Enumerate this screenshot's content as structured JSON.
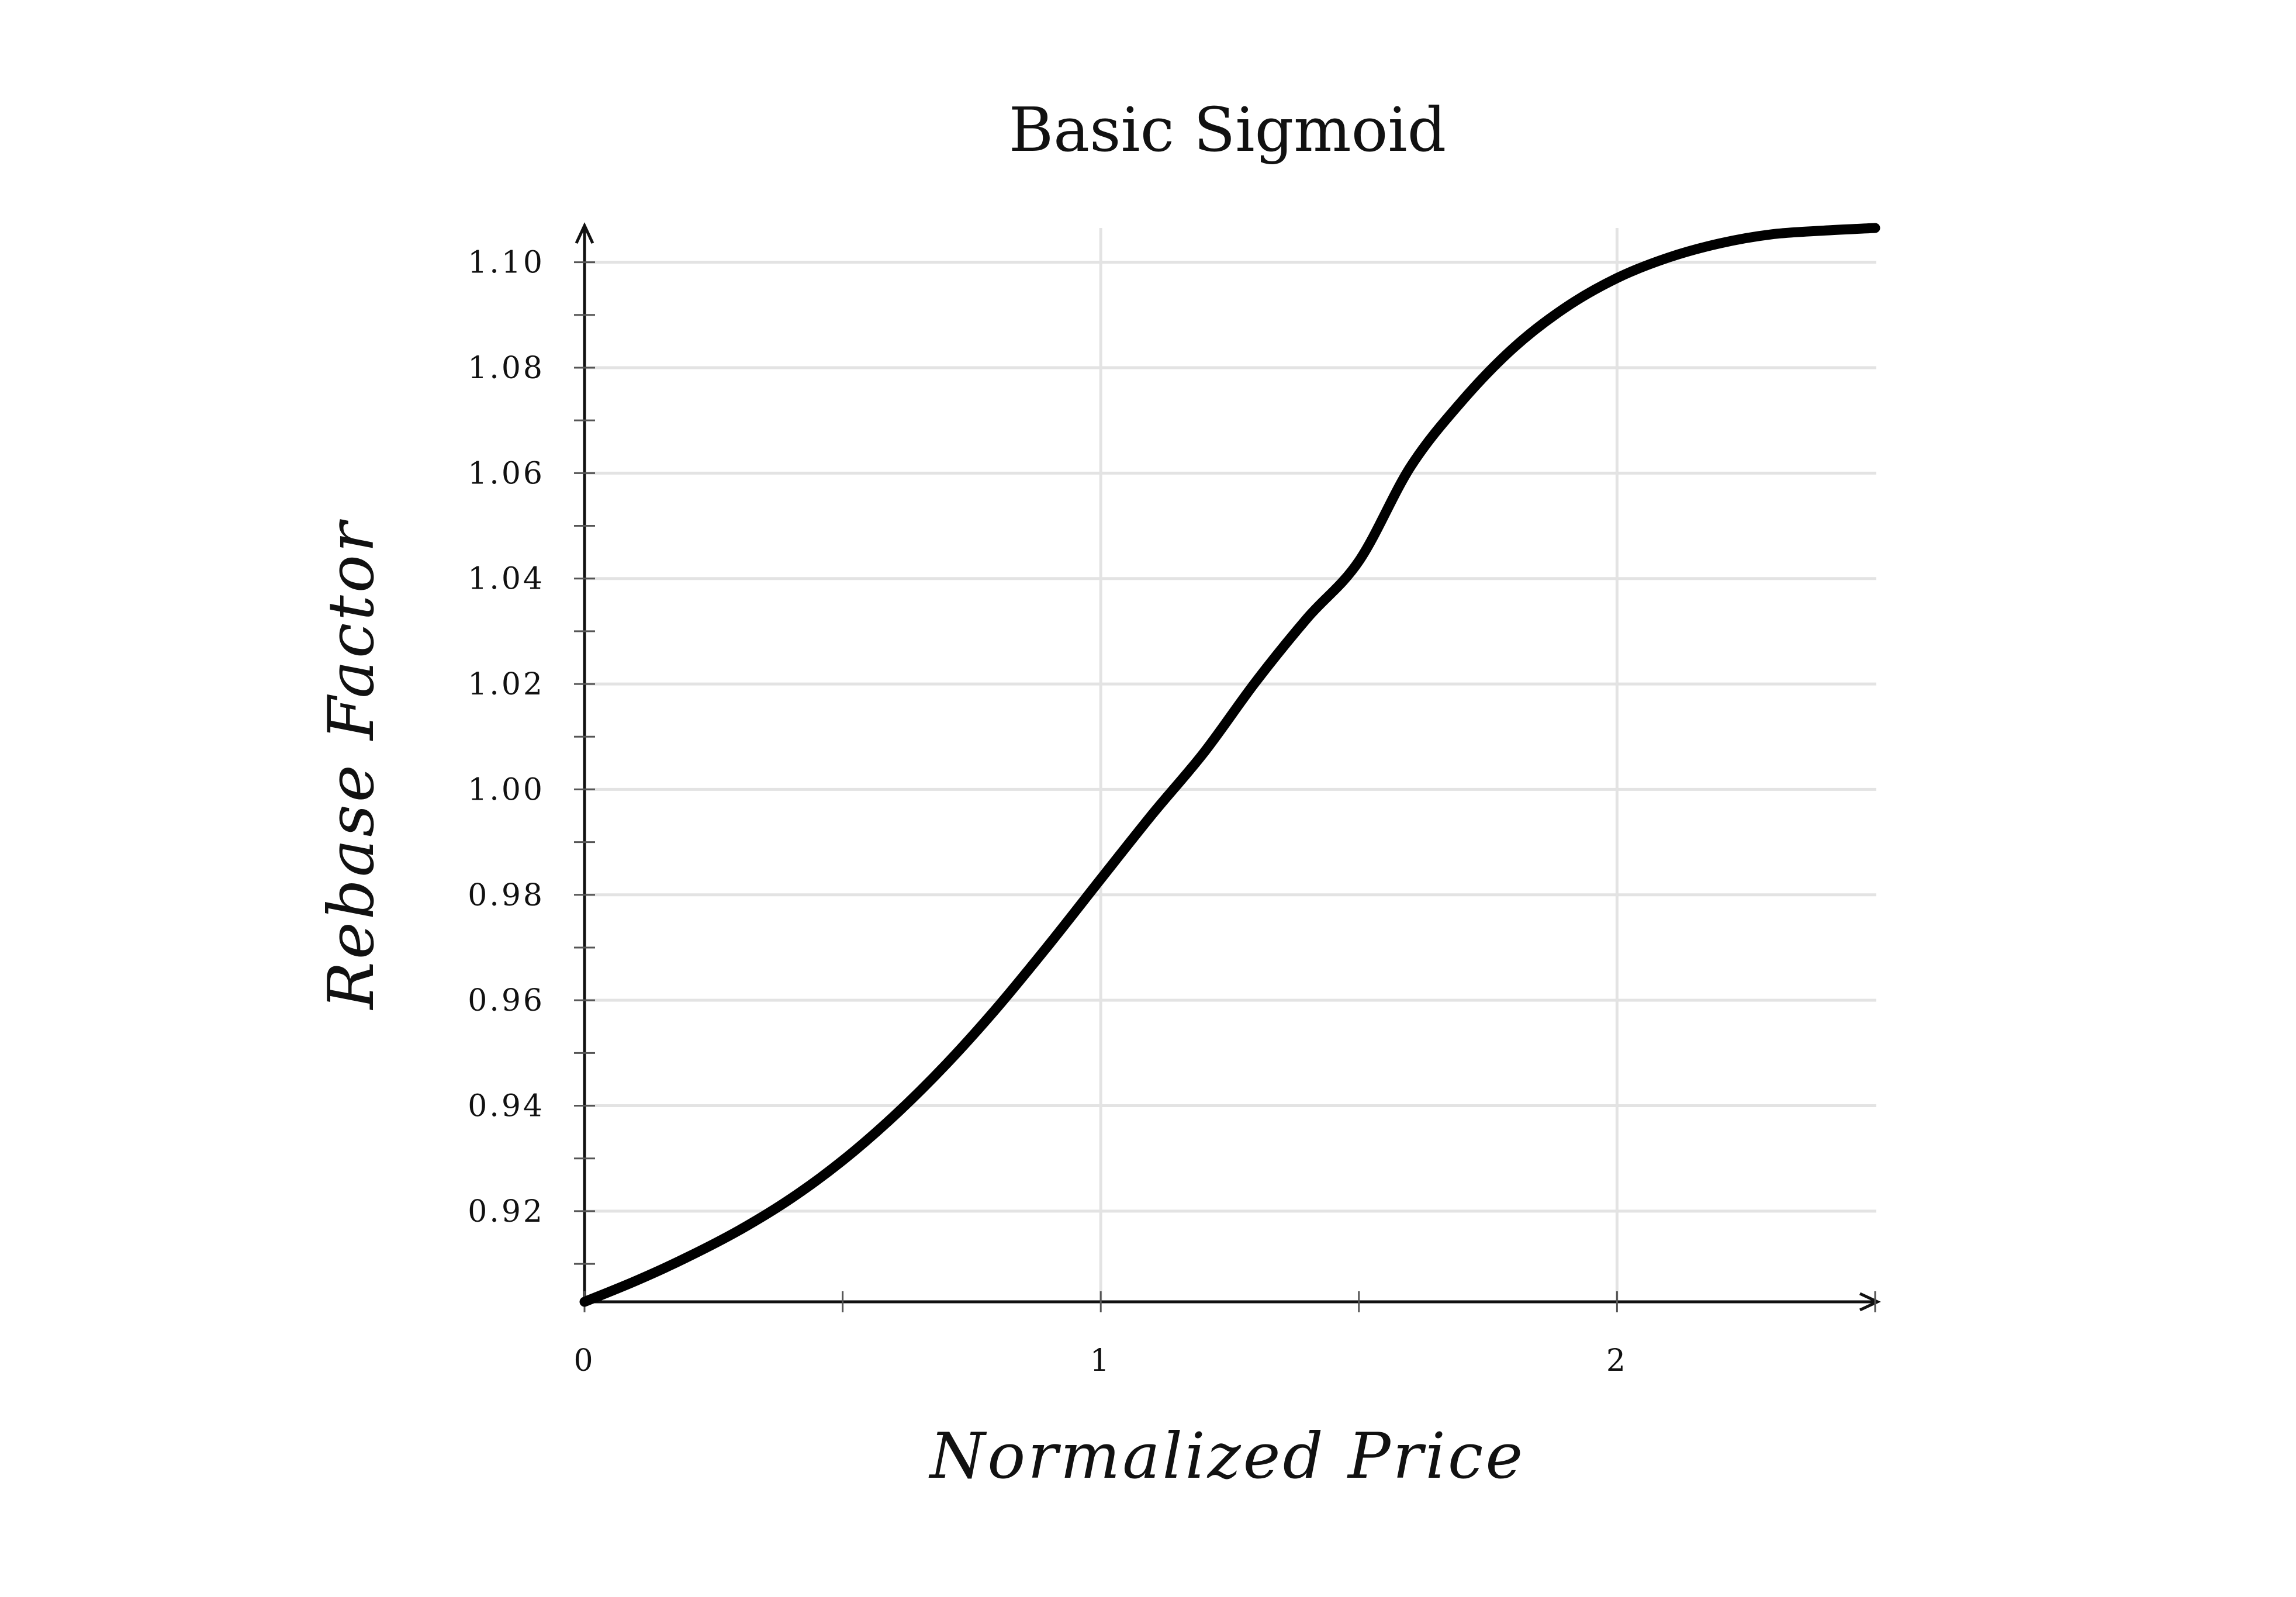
{
  "chart_data": {
    "type": "line",
    "title": "Basic Sigmoid",
    "xlabel": "Normalized Price",
    "ylabel": "Rebase Factor",
    "xlim": [
      0,
      2.5
    ],
    "ylim": [
      0.9028,
      1.1065
    ],
    "x_ticks": [
      0,
      1,
      2
    ],
    "x_tick_labels": [
      "0",
      "1",
      "2"
    ],
    "x_minor_ticks": [
      0.5,
      1.5,
      2.5
    ],
    "y_ticks": [
      0.92,
      0.94,
      0.96,
      0.98,
      1.0,
      1.02,
      1.04,
      1.06,
      1.08,
      1.1
    ],
    "y_tick_labels": [
      "0.92",
      "0.94",
      "0.96",
      "0.98",
      "1.00",
      "1.02",
      "1.04",
      "1.06",
      "1.08",
      "1.10"
    ],
    "y_minor_ticks": [
      0.91,
      0.93,
      0.95,
      0.97,
      0.99,
      1.01,
      1.03,
      1.05,
      1.07,
      1.09
    ],
    "grid": true,
    "line_color": "#000000",
    "grid_color": "#e3e3e3",
    "series": [
      {
        "x": [
          0,
          0.1,
          0.2,
          0.3,
          0.4,
          0.5,
          0.6,
          0.7,
          0.8,
          0.9,
          1.0,
          1.1,
          1.2,
          1.3,
          1.4,
          1.5,
          1.6,
          1.7,
          1.8,
          1.9,
          2.0,
          2.1,
          2.2,
          2.3,
          2.4,
          2.5
        ],
        "y": [
          0.9028,
          0.9068,
          0.9113,
          0.9164,
          0.9224,
          0.9296,
          0.9381,
          0.9478,
          0.9587,
          0.9706,
          0.983,
          0.9953,
          1.007,
          1.0204,
          1.0325,
          1.0433,
          1.0612,
          1.0737,
          1.0838,
          1.0914,
          1.097,
          1.1009,
          1.1036,
          1.1053,
          1.106,
          1.1065
        ]
      }
    ]
  }
}
